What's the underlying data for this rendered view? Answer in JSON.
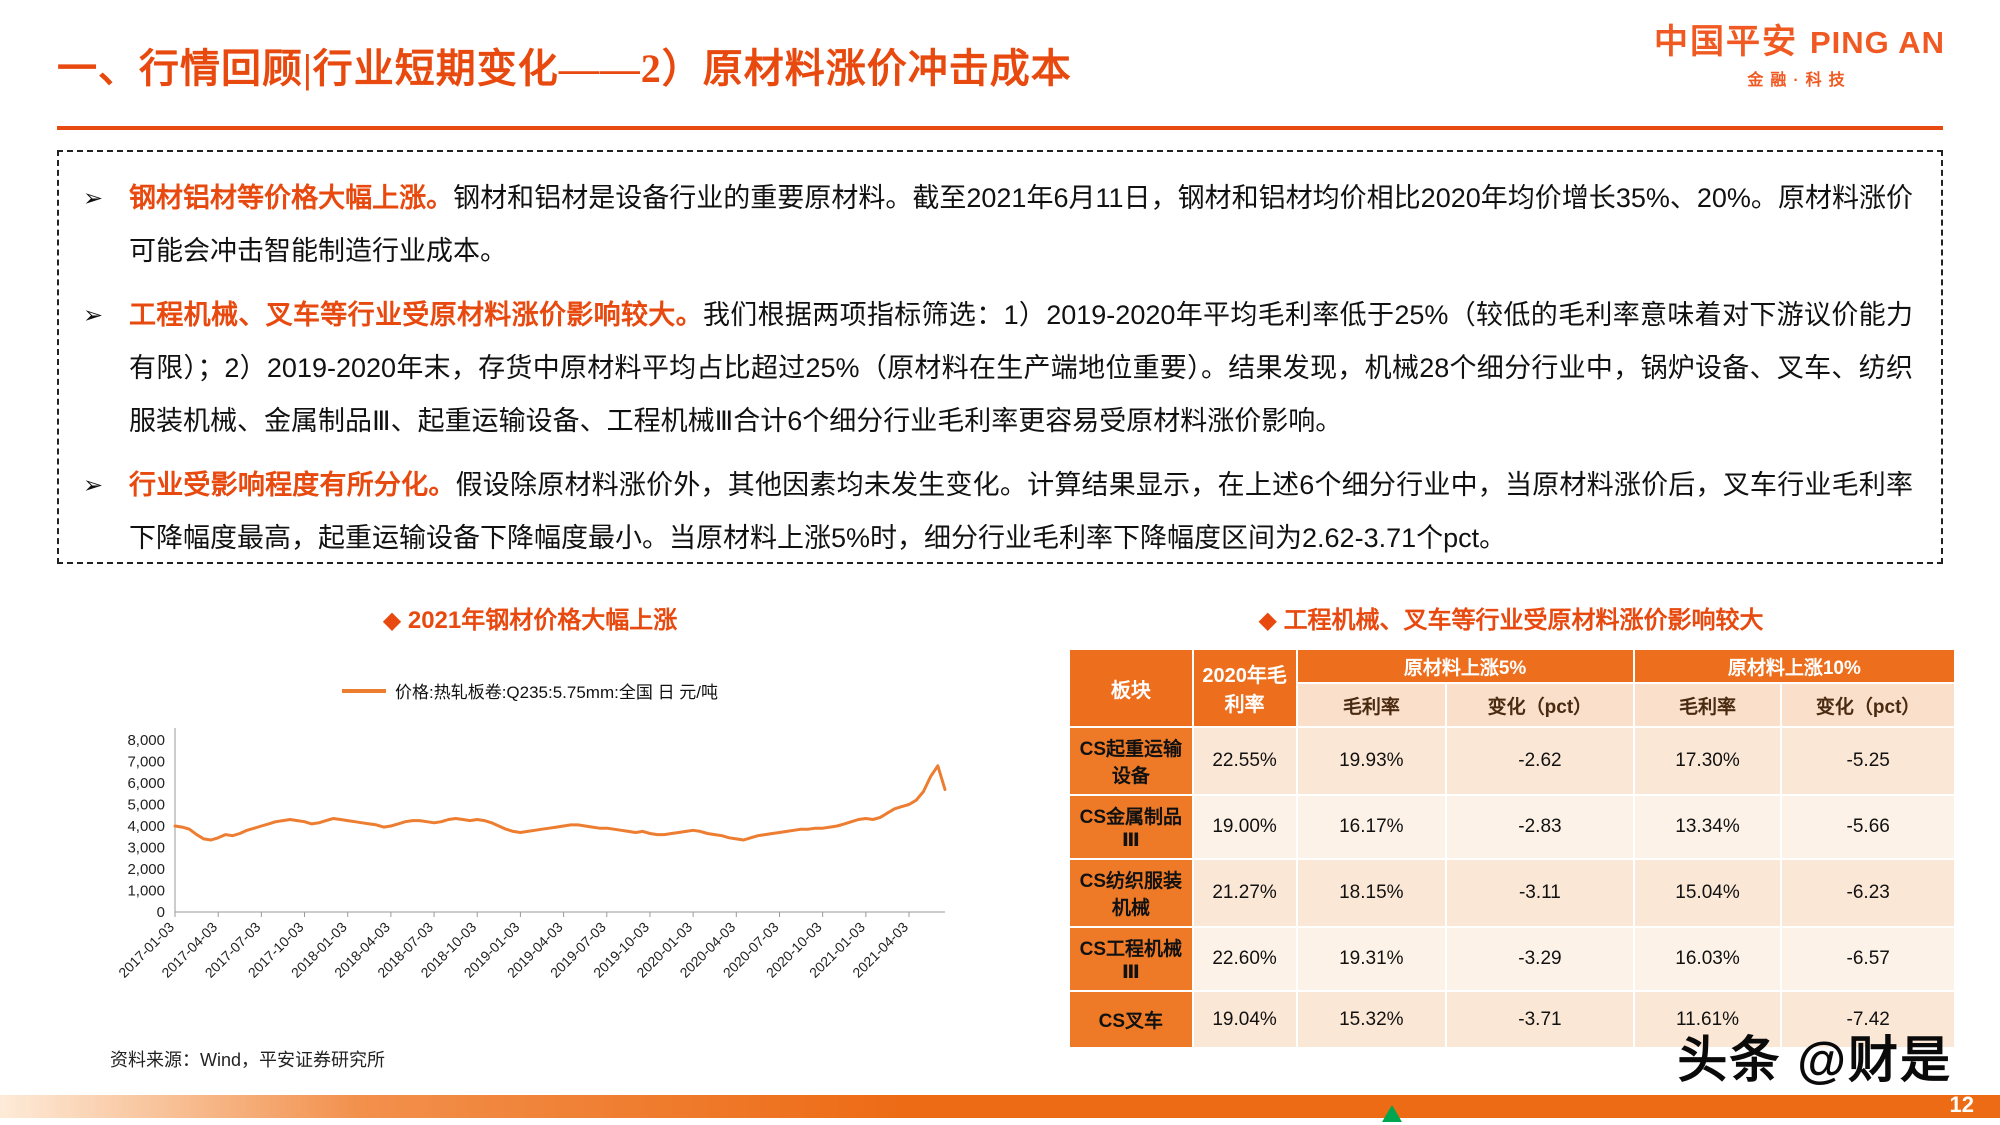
{
  "header": {
    "title": "一、行情回顾|行业短期变化——2）原材料涨价冲击成本",
    "logo": {
      "cn": "中国平安",
      "en": "PING AN",
      "sub": "金融·科技"
    }
  },
  "bullets": [
    {
      "lead": "钢材铝材等价格大幅上涨。",
      "text": "钢材和铝材是设备行业的重要原材料。截至2021年6月11日，钢材和铝材均价相比2020年均价增长35%、20%。原材料涨价可能会冲击智能制造行业成本。"
    },
    {
      "lead": "工程机械、叉车等行业受原材料涨价影响较大。",
      "text": "我们根据两项指标筛选：1）2019-2020年平均毛利率低于25%（较低的毛利率意味着对下游议价能力有限）；2）2019-2020年末，存货中原材料平均占比超过25%（原材料在生产端地位重要）。结果发现，机械28个细分行业中，锅炉设备、叉车、纺织服装机械、金属制品Ⅲ、起重运输设备、工程机械Ⅲ合计6个细分行业毛利率更容易受原材料涨价影响。"
    },
    {
      "lead": "行业受影响程度有所分化。",
      "text": "假设除原材料涨价外，其他因素均未发生变化。计算结果显示，在上述6个细分行业中，当原材料涨价后，叉车行业毛利率下降幅度最高，起重运输设备下降幅度最小。当原材料上涨5%时，细分行业毛利率下降幅度区间为2.62-3.71个pct。"
    }
  ],
  "chart": {
    "title": "◆ 2021年钢材价格大幅上涨",
    "legend": "价格:热轧板卷:Q235:5.75mm:全国 日 元/吨"
  },
  "chart_data": {
    "type": "line",
    "title": "2021年钢材价格大幅上涨",
    "series_name": "价格:热轧板卷:Q235:5.75mm:全国 日 元/吨",
    "ylabel": "元/吨",
    "ylim": [
      0,
      8000
    ],
    "grid": false,
    "legend_position": "top",
    "y_ticks": [
      0,
      1000,
      2000,
      3000,
      4000,
      5000,
      6000,
      7000,
      8000
    ],
    "y_tick_labels": [
      "0",
      "1,000",
      "2,000",
      "3,000",
      "4,000",
      "5,000",
      "6,000",
      "7,000",
      "8,000"
    ],
    "tick_every": 6,
    "x_ticks": [
      "2017-01-03",
      "2017-04-03",
      "2017-07-03",
      "2017-10-03",
      "2018-01-03",
      "2018-04-03",
      "2018-07-03",
      "2018-10-03",
      "2019-01-03",
      "2019-04-03",
      "2019-07-03",
      "2019-10-03",
      "2020-01-03",
      "2020-04-03",
      "2020-07-03",
      "2020-10-03",
      "2021-01-03",
      "2021-04-03"
    ],
    "values": [
      4000,
      3950,
      3850,
      3600,
      3400,
      3350,
      3450,
      3600,
      3550,
      3650,
      3800,
      3900,
      4000,
      4100,
      4200,
      4250,
      4300,
      4250,
      4200,
      4100,
      4150,
      4250,
      4350,
      4300,
      4250,
      4200,
      4150,
      4100,
      4050,
      3950,
      4000,
      4100,
      4200,
      4250,
      4250,
      4200,
      4150,
      4200,
      4300,
      4350,
      4300,
      4250,
      4300,
      4250,
      4150,
      4000,
      3850,
      3750,
      3700,
      3750,
      3800,
      3850,
      3900,
      3950,
      4000,
      4050,
      4050,
      4000,
      3950,
      3900,
      3900,
      3850,
      3800,
      3750,
      3700,
      3750,
      3650,
      3600,
      3600,
      3650,
      3700,
      3750,
      3800,
      3750,
      3650,
      3600,
      3550,
      3450,
      3400,
      3350,
      3450,
      3550,
      3600,
      3650,
      3700,
      3750,
      3800,
      3850,
      3850,
      3900,
      3900,
      3950,
      4000,
      4100,
      4200,
      4300,
      4350,
      4300,
      4400,
      4600,
      4800,
      4900,
      5000,
      5200,
      5600,
      6300,
      6800,
      5700
    ]
  },
  "table": {
    "title": "◆ 工程机械、叉车等行业受原材料涨价影响较大",
    "header": {
      "col1": "板块",
      "col2": "2020年毛利率",
      "group5": "原材料上涨5%",
      "group10": "原材料上涨10%",
      "sub_gm": "毛利率",
      "sub_chg": "变化（pct）"
    },
    "rows": [
      {
        "name": "CS起重运输设备",
        "gm2020": "22.55%",
        "gm5": "19.93%",
        "chg5": "-2.62",
        "gm10": "17.30%",
        "chg10": "-5.25"
      },
      {
        "name": "CS金属制品Ⅲ",
        "gm2020": "19.00%",
        "gm5": "16.17%",
        "chg5": "-2.83",
        "gm10": "13.34%",
        "chg10": "-5.66"
      },
      {
        "name": "CS纺织服装机械",
        "gm2020": "21.27%",
        "gm5": "18.15%",
        "chg5": "-3.11",
        "gm10": "15.04%",
        "chg10": "-6.23"
      },
      {
        "name": "CS工程机械Ⅲ",
        "gm2020": "22.60%",
        "gm5": "19.31%",
        "chg5": "-3.29",
        "gm10": "16.03%",
        "chg10": "-6.57"
      },
      {
        "name": "CS叉车",
        "gm2020": "19.04%",
        "gm5": "15.32%",
        "chg5": "-3.71",
        "gm10": "11.61%",
        "chg10": "-7.42"
      }
    ]
  },
  "footer": {
    "source": "资料来源：Wind，平安证券研究所",
    "watermark": "头条 @财是",
    "page": "12"
  },
  "colors": {
    "title_orange": "#E8490F",
    "table_header_orange": "#ED6F1E",
    "row_head_orange": "#EE7A28",
    "cell_peach": "#FBE7D6",
    "cell_peach_light": "#FDF2E8",
    "line_orange": "#ED7D31",
    "footer_bar_orange": "#ED6B15",
    "green_mark": "#00A550"
  }
}
